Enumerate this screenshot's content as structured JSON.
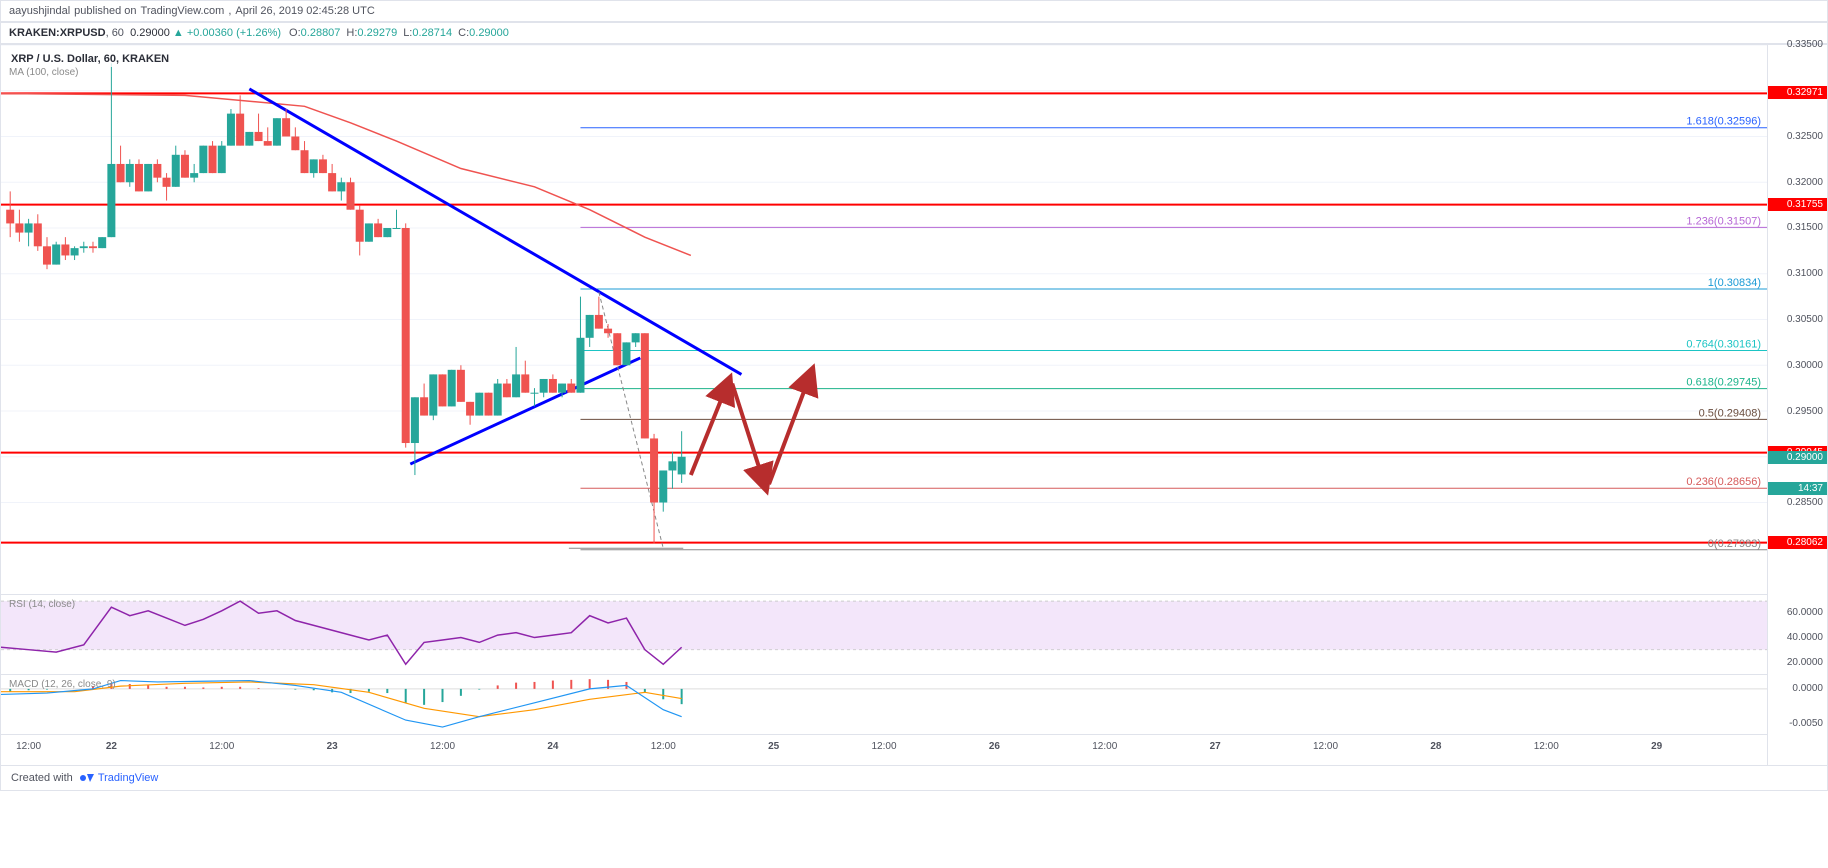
{
  "header": {
    "publisher": "aayushjindal",
    "published_text": "published on",
    "site": "TradingView.com",
    "date": "April 26, 2019 02:45:28 UTC",
    "symbol": "KRAKEN:XRPUSD",
    "interval": "60",
    "last": "0.29000",
    "change": "+0.00360",
    "change_pct": "(+1.26%)",
    "ohlc": {
      "O": "0.28807",
      "H": "0.29279",
      "L": "0.28714",
      "C": "0.29000"
    }
  },
  "chart": {
    "legend_title": "XRP / U.S. Dollar, 60, KRAKEN",
    "ma_label": "MA (100, close)",
    "y_min": 0.275,
    "y_max": 0.335,
    "y_ticks": [
      0.335,
      0.33,
      0.325,
      0.32,
      0.315,
      0.31,
      0.305,
      0.3,
      0.295,
      0.29,
      0.285
    ],
    "x_labels": [
      "12:00",
      "22",
      "12:00",
      "23",
      "12:00",
      "24",
      "12:00",
      "25",
      "12:00",
      "26",
      "12:00",
      "27",
      "12:00",
      "28",
      "12:00",
      "29"
    ],
    "time_start": 0,
    "time_end": 192,
    "colors": {
      "bull": "#26a69a",
      "bear": "#ef5350",
      "grid": "#f0f3fa",
      "red_level": "#ff0000",
      "ma": "#ef5350",
      "trend": "#0000ff",
      "proj": "#b72d2d",
      "dashed": "#888888"
    },
    "price_labels": [
      {
        "v": 0.32971,
        "bg": "#ff0000",
        "text": "0.32971"
      },
      {
        "v": 0.31755,
        "bg": "#ff0000",
        "text": "0.31755"
      },
      {
        "v": 0.29045,
        "bg": "#ff0000",
        "text": "0.29045"
      },
      {
        "v": 0.29,
        "bg": "#26a69a",
        "text": "0.29000"
      },
      {
        "v": 0.28062,
        "bg": "#ff0000",
        "text": "0.28062"
      }
    ],
    "countdown": {
      "v": 0.288,
      "bg": "#26a69a",
      "text": "14:37"
    },
    "h_lines": [
      {
        "v": 0.32971,
        "color": "#ff0000",
        "w": 2
      },
      {
        "v": 0.31755,
        "color": "#ff0000",
        "w": 2
      },
      {
        "v": 0.29045,
        "color": "#ff0000",
        "w": 2
      },
      {
        "v": 0.28062,
        "color": "#ff0000",
        "w": 2
      }
    ],
    "fib": [
      {
        "v": 0.32596,
        "label": "1.618(0.32596)",
        "color": "#2962ff"
      },
      {
        "v": 0.31507,
        "label": "1.236(0.31507)",
        "color": "#b768d6"
      },
      {
        "v": 0.30834,
        "label": "1(0.30834)",
        "color": "#1b9bd6"
      },
      {
        "v": 0.30161,
        "label": "0.764(0.30161)",
        "color": "#1bc4c4"
      },
      {
        "v": 0.29745,
        "label": "0.618(0.29745)",
        "color": "#1bb38a"
      },
      {
        "v": 0.29408,
        "label": "0.5(0.29408)",
        "color": "#6b4e3f"
      },
      {
        "v": 0.28656,
        "label": "0.236(0.28656)",
        "color": "#d65b5b"
      },
      {
        "v": 0.27983,
        "label": "0(0.27983)",
        "color": "#888888"
      }
    ],
    "candles": [
      {
        "t": 1,
        "o": 0.317,
        "h": 0.319,
        "l": 0.314,
        "c": 0.3155
      },
      {
        "t": 2,
        "o": 0.3155,
        "h": 0.317,
        "l": 0.3135,
        "c": 0.3145
      },
      {
        "t": 3,
        "o": 0.3145,
        "h": 0.316,
        "l": 0.313,
        "c": 0.3155
      },
      {
        "t": 4,
        "o": 0.3155,
        "h": 0.3165,
        "l": 0.3125,
        "c": 0.313
      },
      {
        "t": 5,
        "o": 0.313,
        "h": 0.314,
        "l": 0.3105,
        "c": 0.311
      },
      {
        "t": 6,
        "o": 0.311,
        "h": 0.3135,
        "l": 0.311,
        "c": 0.3132
      },
      {
        "t": 7,
        "o": 0.3132,
        "h": 0.314,
        "l": 0.3115,
        "c": 0.312
      },
      {
        "t": 8,
        "o": 0.312,
        "h": 0.313,
        "l": 0.3115,
        "c": 0.3128
      },
      {
        "t": 9,
        "o": 0.3128,
        "h": 0.3135,
        "l": 0.3123,
        "c": 0.313
      },
      {
        "t": 10,
        "o": 0.313,
        "h": 0.3135,
        "l": 0.3123,
        "c": 0.3128
      },
      {
        "t": 11,
        "o": 0.3128,
        "h": 0.314,
        "l": 0.3128,
        "c": 0.314
      },
      {
        "t": 12,
        "o": 0.314,
        "h": 0.333,
        "l": 0.314,
        "c": 0.322
      },
      {
        "t": 13,
        "o": 0.322,
        "h": 0.324,
        "l": 0.32,
        "c": 0.32
      },
      {
        "t": 14,
        "o": 0.32,
        "h": 0.3225,
        "l": 0.3195,
        "c": 0.322
      },
      {
        "t": 15,
        "o": 0.322,
        "h": 0.3225,
        "l": 0.319,
        "c": 0.319
      },
      {
        "t": 16,
        "o": 0.319,
        "h": 0.322,
        "l": 0.319,
        "c": 0.322
      },
      {
        "t": 17,
        "o": 0.322,
        "h": 0.3225,
        "l": 0.32,
        "c": 0.3205
      },
      {
        "t": 18,
        "o": 0.3205,
        "h": 0.321,
        "l": 0.318,
        "c": 0.3195
      },
      {
        "t": 19,
        "o": 0.3195,
        "h": 0.324,
        "l": 0.3195,
        "c": 0.323
      },
      {
        "t": 20,
        "o": 0.323,
        "h": 0.3235,
        "l": 0.3205,
        "c": 0.3205
      },
      {
        "t": 21,
        "o": 0.3205,
        "h": 0.322,
        "l": 0.32,
        "c": 0.321
      },
      {
        "t": 22,
        "o": 0.321,
        "h": 0.324,
        "l": 0.321,
        "c": 0.324
      },
      {
        "t": 23,
        "o": 0.324,
        "h": 0.3245,
        "l": 0.321,
        "c": 0.321
      },
      {
        "t": 24,
        "o": 0.321,
        "h": 0.3245,
        "l": 0.321,
        "c": 0.324
      },
      {
        "t": 25,
        "o": 0.324,
        "h": 0.328,
        "l": 0.324,
        "c": 0.3275
      },
      {
        "t": 26,
        "o": 0.3275,
        "h": 0.3295,
        "l": 0.324,
        "c": 0.324
      },
      {
        "t": 27,
        "o": 0.324,
        "h": 0.3255,
        "l": 0.324,
        "c": 0.3255
      },
      {
        "t": 28,
        "o": 0.3255,
        "h": 0.3275,
        "l": 0.3245,
        "c": 0.3245
      },
      {
        "t": 29,
        "o": 0.3245,
        "h": 0.326,
        "l": 0.324,
        "c": 0.324
      },
      {
        "t": 30,
        "o": 0.324,
        "h": 0.327,
        "l": 0.324,
        "c": 0.327
      },
      {
        "t": 31,
        "o": 0.327,
        "h": 0.328,
        "l": 0.325,
        "c": 0.325
      },
      {
        "t": 32,
        "o": 0.325,
        "h": 0.326,
        "l": 0.3235,
        "c": 0.3235
      },
      {
        "t": 33,
        "o": 0.3235,
        "h": 0.3245,
        "l": 0.321,
        "c": 0.321
      },
      {
        "t": 34,
        "o": 0.321,
        "h": 0.3225,
        "l": 0.3205,
        "c": 0.3225
      },
      {
        "t": 35,
        "o": 0.3225,
        "h": 0.323,
        "l": 0.321,
        "c": 0.321
      },
      {
        "t": 36,
        "o": 0.321,
        "h": 0.322,
        "l": 0.319,
        "c": 0.319
      },
      {
        "t": 37,
        "o": 0.319,
        "h": 0.3205,
        "l": 0.318,
        "c": 0.32
      },
      {
        "t": 38,
        "o": 0.32,
        "h": 0.3205,
        "l": 0.317,
        "c": 0.317
      },
      {
        "t": 39,
        "o": 0.317,
        "h": 0.3175,
        "l": 0.312,
        "c": 0.3135
      },
      {
        "t": 40,
        "o": 0.3135,
        "h": 0.3155,
        "l": 0.3135,
        "c": 0.3155
      },
      {
        "t": 41,
        "o": 0.3155,
        "h": 0.316,
        "l": 0.314,
        "c": 0.314
      },
      {
        "t": 42,
        "o": 0.314,
        "h": 0.315,
        "l": 0.314,
        "c": 0.315
      },
      {
        "t": 43,
        "o": 0.315,
        "h": 0.317,
        "l": 0.315,
        "c": 0.315
      },
      {
        "t": 44,
        "o": 0.315,
        "h": 0.3155,
        "l": 0.291,
        "c": 0.2915
      },
      {
        "t": 45,
        "o": 0.2915,
        "h": 0.2965,
        "l": 0.288,
        "c": 0.2965
      },
      {
        "t": 46,
        "o": 0.2965,
        "h": 0.298,
        "l": 0.2945,
        "c": 0.2945
      },
      {
        "t": 47,
        "o": 0.2945,
        "h": 0.299,
        "l": 0.294,
        "c": 0.299
      },
      {
        "t": 48,
        "o": 0.299,
        "h": 0.299,
        "l": 0.2955,
        "c": 0.2955
      },
      {
        "t": 49,
        "o": 0.2955,
        "h": 0.2995,
        "l": 0.2955,
        "c": 0.2995
      },
      {
        "t": 50,
        "o": 0.2995,
        "h": 0.3,
        "l": 0.296,
        "c": 0.296
      },
      {
        "t": 51,
        "o": 0.296,
        "h": 0.296,
        "l": 0.2935,
        "c": 0.2945
      },
      {
        "t": 52,
        "o": 0.2945,
        "h": 0.297,
        "l": 0.2945,
        "c": 0.297
      },
      {
        "t": 53,
        "o": 0.297,
        "h": 0.297,
        "l": 0.2945,
        "c": 0.2945
      },
      {
        "t": 54,
        "o": 0.2945,
        "h": 0.2985,
        "l": 0.2945,
        "c": 0.298
      },
      {
        "t": 55,
        "o": 0.298,
        "h": 0.2985,
        "l": 0.2965,
        "c": 0.2965
      },
      {
        "t": 56,
        "o": 0.2965,
        "h": 0.302,
        "l": 0.2965,
        "c": 0.299
      },
      {
        "t": 57,
        "o": 0.299,
        "h": 0.3005,
        "l": 0.297,
        "c": 0.297
      },
      {
        "t": 58,
        "o": 0.297,
        "h": 0.2975,
        "l": 0.2955,
        "c": 0.297
      },
      {
        "t": 59,
        "o": 0.297,
        "h": 0.2985,
        "l": 0.2965,
        "c": 0.2985
      },
      {
        "t": 60,
        "o": 0.2985,
        "h": 0.299,
        "l": 0.297,
        "c": 0.297
      },
      {
        "t": 61,
        "o": 0.297,
        "h": 0.298,
        "l": 0.2965,
        "c": 0.298
      },
      {
        "t": 62,
        "o": 0.298,
        "h": 0.2985,
        "l": 0.297,
        "c": 0.297
      },
      {
        "t": 63,
        "o": 0.297,
        "h": 0.3075,
        "l": 0.297,
        "c": 0.303
      },
      {
        "t": 64,
        "o": 0.303,
        "h": 0.3055,
        "l": 0.302,
        "c": 0.3055
      },
      {
        "t": 65,
        "o": 0.3055,
        "h": 0.3075,
        "l": 0.304,
        "c": 0.304
      },
      {
        "t": 66,
        "o": 0.304,
        "h": 0.3045,
        "l": 0.303,
        "c": 0.3035
      },
      {
        "t": 67,
        "o": 0.3035,
        "h": 0.3035,
        "l": 0.3,
        "c": 0.3
      },
      {
        "t": 68,
        "o": 0.3,
        "h": 0.3025,
        "l": 0.3,
        "c": 0.3025
      },
      {
        "t": 69,
        "o": 0.3025,
        "h": 0.3035,
        "l": 0.302,
        "c": 0.3035
      },
      {
        "t": 70,
        "o": 0.3035,
        "h": 0.3035,
        "l": 0.292,
        "c": 0.292
      },
      {
        "t": 71,
        "o": 0.292,
        "h": 0.2925,
        "l": 0.2805,
        "c": 0.285
      },
      {
        "t": 72,
        "o": 0.285,
        "h": 0.2885,
        "l": 0.284,
        "c": 0.2885
      },
      {
        "t": 73,
        "o": 0.2885,
        "h": 0.2905,
        "l": 0.2865,
        "c": 0.2895
      },
      {
        "t": 74,
        "o": 0.28807,
        "h": 0.29279,
        "l": 0.28714,
        "c": 0.29
      }
    ],
    "ma_line": [
      [
        0,
        0.3297
      ],
      [
        20,
        0.3295
      ],
      [
        33,
        0.3283
      ],
      [
        38,
        0.3265
      ],
      [
        43,
        0.3245
      ],
      [
        50,
        0.3215
      ],
      [
        58,
        0.3195
      ],
      [
        64,
        0.317
      ],
      [
        70,
        0.314
      ],
      [
        75,
        0.312
      ]
    ],
    "trend_up": [
      [
        27,
        0.3302
      ],
      [
        80.5,
        0.299
      ]
    ],
    "trend_lo": [
      [
        44.5,
        0.2892
      ],
      [
        69.5,
        0.3008
      ]
    ],
    "dashed_proj": [
      [
        65,
        0.308
      ],
      [
        72,
        0.28
      ]
    ],
    "red_arrows": [
      [
        [
          75,
          0.288
        ],
        [
          79,
          0.298
        ]
      ],
      [
        [
          79.5,
          0.298
        ],
        [
          83,
          0.287
        ]
      ],
      [
        [
          83.5,
          0.287
        ],
        [
          88,
          0.299
        ]
      ]
    ]
  },
  "rsi": {
    "label": "RSI (14, close)",
    "y_ticks": [
      60,
      40,
      20
    ],
    "y_min": 10,
    "y_max": 75,
    "band_hi": 70,
    "band_lo": 30,
    "color": "#8e24aa",
    "band_color": "#f3e6fa",
    "line": [
      [
        0,
        32
      ],
      [
        3,
        30
      ],
      [
        6,
        28
      ],
      [
        9,
        34
      ],
      [
        12,
        65
      ],
      [
        14,
        58
      ],
      [
        16,
        62
      ],
      [
        18,
        56
      ],
      [
        20,
        50
      ],
      [
        22,
        55
      ],
      [
        24,
        62
      ],
      [
        26,
        70
      ],
      [
        28,
        60
      ],
      [
        30,
        62
      ],
      [
        32,
        54
      ],
      [
        34,
        50
      ],
      [
        36,
        46
      ],
      [
        38,
        42
      ],
      [
        40,
        38
      ],
      [
        42,
        42
      ],
      [
        44,
        18
      ],
      [
        46,
        36
      ],
      [
        48,
        38
      ],
      [
        50,
        40
      ],
      [
        52,
        36
      ],
      [
        54,
        42
      ],
      [
        56,
        44
      ],
      [
        58,
        40
      ],
      [
        60,
        42
      ],
      [
        62,
        44
      ],
      [
        64,
        58
      ],
      [
        66,
        52
      ],
      [
        68,
        56
      ],
      [
        70,
        30
      ],
      [
        72,
        18
      ],
      [
        74,
        32
      ]
    ]
  },
  "macd": {
    "label": "MACD (12, 26, close, 9)",
    "y_ticks": [
      "0.0000",
      "-0.0050"
    ],
    "y_min": -0.0065,
    "y_max": 0.002,
    "colors": {
      "macd": "#2196f3",
      "signal": "#ff9800",
      "hist_pos": "#ef5350",
      "hist_neg": "#26a69a"
    },
    "macd_line": [
      [
        0,
        -0.0008
      ],
      [
        5,
        -0.0006
      ],
      [
        10,
        0.0
      ],
      [
        13,
        0.0012
      ],
      [
        17,
        0.001
      ],
      [
        22,
        0.0011
      ],
      [
        27,
        0.0012
      ],
      [
        32,
        0.0005
      ],
      [
        37,
        -0.0005
      ],
      [
        44,
        -0.0045
      ],
      [
        48,
        -0.0055
      ],
      [
        52,
        -0.004
      ],
      [
        58,
        -0.002
      ],
      [
        64,
        0.0
      ],
      [
        68,
        0.0005
      ],
      [
        72,
        -0.003
      ],
      [
        74,
        -0.004
      ]
    ],
    "signal_line": [
      [
        0,
        -0.0004
      ],
      [
        8,
        -0.0004
      ],
      [
        13,
        0.0004
      ],
      [
        20,
        0.0008
      ],
      [
        27,
        0.001
      ],
      [
        34,
        0.0006
      ],
      [
        40,
        -0.0005
      ],
      [
        46,
        -0.0028
      ],
      [
        52,
        -0.004
      ],
      [
        58,
        -0.003
      ],
      [
        64,
        -0.0015
      ],
      [
        70,
        -0.0005
      ],
      [
        74,
        -0.0014
      ]
    ],
    "hist": [
      [
        1,
        -0.0004
      ],
      [
        3,
        -0.0002
      ],
      [
        5,
        -0.0001
      ],
      [
        8,
        0.0
      ],
      [
        10,
        0.0004
      ],
      [
        12,
        0.0008
      ],
      [
        14,
        0.0007
      ],
      [
        16,
        0.0005
      ],
      [
        18,
        0.0003
      ],
      [
        20,
        0.0003
      ],
      [
        22,
        0.0002
      ],
      [
        24,
        0.0003
      ],
      [
        26,
        0.0003
      ],
      [
        28,
        0.0001
      ],
      [
        30,
        0.0
      ],
      [
        32,
        -0.0001
      ],
      [
        34,
        -0.0002
      ],
      [
        36,
        -0.0005
      ],
      [
        38,
        -0.0006
      ],
      [
        40,
        -0.0004
      ],
      [
        42,
        -0.0006
      ],
      [
        44,
        -0.002
      ],
      [
        46,
        -0.0023
      ],
      [
        48,
        -0.0019
      ],
      [
        50,
        -0.001
      ],
      [
        52,
        -0.0001
      ],
      [
        54,
        0.0005
      ],
      [
        56,
        0.0009
      ],
      [
        58,
        0.001
      ],
      [
        60,
        0.0012
      ],
      [
        62,
        0.0013
      ],
      [
        64,
        0.0014
      ],
      [
        66,
        0.0013
      ],
      [
        68,
        0.001
      ],
      [
        70,
        -0.0005
      ],
      [
        72,
        -0.0015
      ],
      [
        74,
        -0.0022
      ]
    ]
  },
  "footer": {
    "created": "Created with",
    "brand": "TradingView"
  }
}
